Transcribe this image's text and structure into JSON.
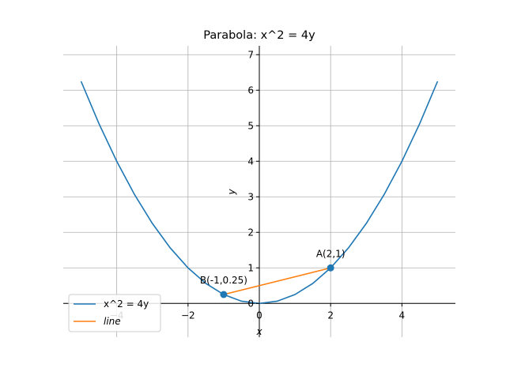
{
  "chart_data": {
    "type": "line",
    "title": "Parabola: x^2 = 4y",
    "xlabel": "x",
    "ylabel": "y",
    "xlim": [
      -5.5,
      5.5
    ],
    "ylim": [
      -0.95,
      7.25
    ],
    "grid": true,
    "legend_position": "lower-left",
    "x_ticks": [
      -4,
      -2,
      0,
      2,
      4
    ],
    "y_ticks": [
      0,
      1,
      2,
      3,
      4,
      5,
      6,
      7
    ],
    "x_tick_labels": [
      "−4",
      "−2",
      "0",
      "2",
      "4"
    ],
    "y_tick_labels": [
      "0",
      "1",
      "2",
      "3",
      "4",
      "5",
      "6",
      "7"
    ],
    "series": [
      {
        "name": "x^2 = 4y",
        "color": "#1f77b4",
        "x": [
          -5,
          -4.5,
          -4,
          -3.5,
          -3,
          -2.5,
          -2,
          -1.5,
          -1,
          -0.5,
          0,
          0.5,
          1,
          1.5,
          2,
          2.5,
          3,
          3.5,
          4,
          4.5,
          5
        ],
        "y": [
          6.25,
          5.0625,
          4,
          3.0625,
          2.25,
          1.5625,
          1,
          0.5625,
          0.25,
          0.0625,
          0,
          0.0625,
          0.25,
          0.5625,
          1,
          1.5625,
          2.25,
          3.0625,
          4,
          5.0625,
          6.25
        ]
      },
      {
        "name": "line",
        "color": "#ff7f0e",
        "x": [
          -1,
          2
        ],
        "y": [
          0.25,
          1
        ]
      }
    ],
    "points": [
      {
        "label": "A(2,1)",
        "x": 2,
        "y": 1,
        "color": "#1f77b4"
      },
      {
        "label": "B(-1,0.25)",
        "x": -1,
        "y": 0.25,
        "color": "#1f77b4"
      }
    ]
  }
}
